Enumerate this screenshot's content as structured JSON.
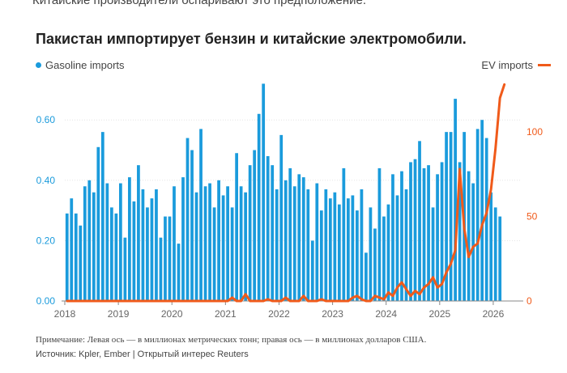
{
  "intro": "Китайские производители оспаривают это предположение.",
  "title": "Пакистан импортирует бензин и китайские электромобили.",
  "note": "Примечание: Левая ось — в миллионах метрических тонн; правая ось — в миллионах долларов США.",
  "source": "Источник: Kpler, Ember | Открытый интерес Reuters",
  "chart_data": {
    "type": "bar+line",
    "x_start": "2018-01",
    "x_end": "2026-07",
    "x_ticks": [
      "2018",
      "2019",
      "2020",
      "2021",
      "2022",
      "2023",
      "2024",
      "2025",
      "2026"
    ],
    "left_axis": {
      "ticks": [
        "0.00",
        "0.20",
        "0.40",
        "0.60"
      ],
      "ylim": [
        0,
        0.74
      ],
      "color": "#1a9bdc"
    },
    "right_axis": {
      "ticks": [
        "0",
        "50",
        "100"
      ],
      "ylim": [
        0,
        132
      ],
      "color": "#f05a1a"
    },
    "series": [
      {
        "name": "Gasoline imports",
        "type": "bar",
        "color": "#1a9bdc",
        "values": [
          0.29,
          0.34,
          0.29,
          0.25,
          0.38,
          0.4,
          0.36,
          0.51,
          0.56,
          0.39,
          0.31,
          0.29,
          0.39,
          0.21,
          0.41,
          0.33,
          0.45,
          0.37,
          0.31,
          0.34,
          0.37,
          0.21,
          0.28,
          0.28,
          0.38,
          0.19,
          0.41,
          0.54,
          0.5,
          0.36,
          0.57,
          0.38,
          0.39,
          0.31,
          0.4,
          0.35,
          0.38,
          0.31,
          0.49,
          0.38,
          0.36,
          0.45,
          0.5,
          0.62,
          0.72,
          0.48,
          0.45,
          0.37,
          0.55,
          0.4,
          0.44,
          0.38,
          0.42,
          0.41,
          0.37,
          0.2,
          0.39,
          0.3,
          0.37,
          0.34,
          0.36,
          0.32,
          0.44,
          0.34,
          0.35,
          0.3,
          0.37,
          0.16,
          0.31,
          0.24,
          0.44,
          0.28,
          0.32,
          0.42,
          0.35,
          0.43,
          0.37,
          0.46,
          0.47,
          0.53,
          0.44,
          0.45,
          0.31,
          0.42,
          0.46,
          0.56,
          0.56,
          0.67,
          0.46,
          0.56,
          0.43,
          0.39,
          0.57,
          0.6,
          0.54,
          0.36,
          0.31,
          0.28
        ],
        "_comment": "monthly, Jan 2018 onward"
      },
      {
        "name": "EV imports",
        "type": "line",
        "color": "#f05a1a",
        "values": [
          0,
          0,
          0,
          0,
          0,
          0,
          0,
          0,
          0,
          0,
          0,
          0,
          0,
          0,
          0,
          0,
          0,
          0,
          0,
          0,
          0,
          0,
          0,
          0,
          0,
          0,
          0,
          0,
          0,
          0,
          0,
          0,
          0,
          0,
          0,
          0,
          0,
          2,
          0,
          0,
          4,
          0,
          0,
          0,
          0,
          1,
          0,
          0,
          0,
          2,
          0,
          0,
          0,
          3,
          0,
          0,
          0,
          1,
          0,
          0,
          0,
          0,
          0,
          0,
          2,
          3,
          1,
          0,
          0,
          3,
          2,
          1,
          5,
          3,
          8,
          11,
          7,
          3,
          6,
          4,
          8,
          10,
          14,
          8,
          10,
          17,
          22,
          30,
          78,
          43,
          26,
          32,
          34,
          45,
          52,
          66,
          90,
          120,
          128
        ],
        "_comment": "monthly, Jan 2018 onward"
      }
    ]
  }
}
